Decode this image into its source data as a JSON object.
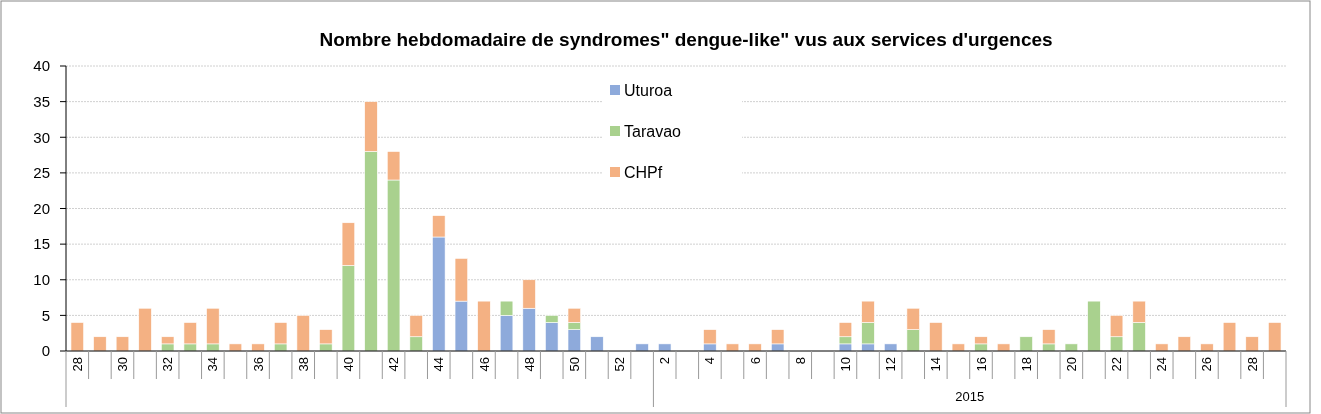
{
  "chart_data": {
    "type": "bar",
    "title": "Nombre hebdomadaire de syndromes\" dengue-like\" vus aux services d'urgences",
    "categories": [
      "28",
      null,
      "30",
      null,
      "32",
      null,
      "34",
      null,
      "36",
      null,
      "38",
      null,
      "40",
      null,
      "42",
      null,
      "44",
      null,
      "46",
      null,
      "48",
      null,
      "50",
      null,
      "52",
      null,
      "2",
      null,
      "4",
      null,
      "6",
      null,
      "8",
      null,
      "10",
      null,
      "12",
      null,
      "14",
      null,
      "16",
      null,
      "18",
      null,
      "20",
      null,
      "22",
      null,
      "24",
      null,
      "26",
      null,
      "28",
      null
    ],
    "series": [
      {
        "name": "Uturoa",
        "color": "#8eaadb",
        "values": [
          0,
          0,
          0,
          0,
          0,
          0,
          0,
          0,
          0,
          0,
          0,
          0,
          0,
          0,
          0,
          0,
          16,
          7,
          0,
          5,
          6,
          4,
          3,
          2,
          0,
          1,
          1,
          0,
          1,
          0,
          0,
          1,
          0,
          0,
          1,
          1,
          1,
          0,
          0,
          0,
          0,
          0,
          0,
          0,
          0,
          0,
          0,
          0,
          0,
          0,
          0,
          0,
          0,
          0
        ]
      },
      {
        "name": "Taravao",
        "color": "#a9d18e",
        "values": [
          0,
          0,
          0,
          0,
          1,
          1,
          1,
          0,
          0,
          1,
          0,
          1,
          12,
          28,
          24,
          2,
          0,
          0,
          0,
          2,
          0,
          1,
          1,
          0,
          0,
          0,
          0,
          0,
          0,
          0,
          0,
          0,
          0,
          0,
          1,
          3,
          0,
          3,
          0,
          0,
          1,
          0,
          2,
          1,
          1,
          7,
          2,
          4,
          0,
          0,
          0,
          0,
          0,
          0
        ]
      },
      {
        "name": "CHPf",
        "color": "#f4b183",
        "values": [
          4,
          2,
          2,
          6,
          1,
          3,
          5,
          1,
          1,
          3,
          5,
          2,
          6,
          7,
          4,
          3,
          3,
          6,
          7,
          0,
          4,
          0,
          2,
          0,
          0,
          0,
          0,
          0,
          2,
          1,
          1,
          2,
          0,
          0,
          2,
          3,
          0,
          3,
          4,
          1,
          1,
          1,
          0,
          2,
          0,
          0,
          3,
          3,
          1,
          2,
          1,
          4,
          2,
          4
        ]
      }
    ],
    "stacked": true,
    "ylim": [
      0,
      40
    ],
    "yticks": [
      0,
      5,
      10,
      15,
      20,
      25,
      30,
      35,
      40
    ],
    "grid": "y",
    "legend": "top",
    "annotations": [
      "2015"
    ]
  }
}
